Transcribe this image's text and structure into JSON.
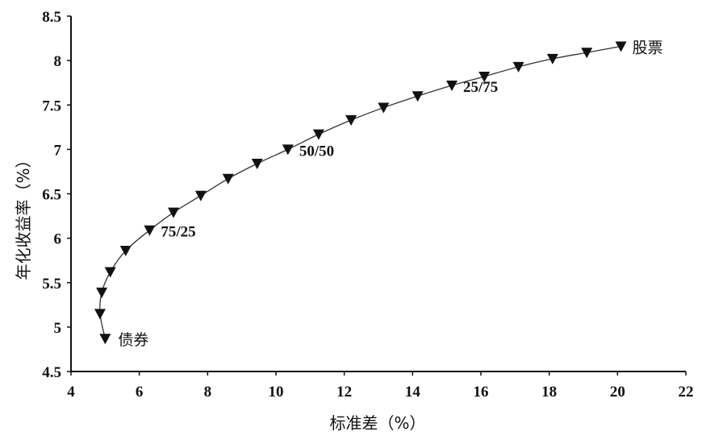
{
  "chart_data": {
    "type": "scatter",
    "xlabel": "标准差（%）",
    "ylabel": "年化收益率（%）",
    "xlim": [
      4,
      22
    ],
    "ylim": [
      4.5,
      8.5
    ],
    "x_ticks": [
      "4",
      "6",
      "8",
      "10",
      "12",
      "14",
      "16",
      "18",
      "20",
      "22"
    ],
    "y_ticks": [
      "4.5",
      "5",
      "5.5",
      "6",
      "6.5",
      "7",
      "7.5",
      "8",
      "8.5"
    ],
    "series": [
      {
        "x": [
          5.0,
          4.85,
          4.9,
          5.15,
          5.6,
          6.3,
          7.0,
          7.8,
          8.6,
          9.45,
          10.35,
          11.25,
          12.2,
          13.15,
          14.15,
          15.15,
          16.1,
          17.1,
          18.1,
          19.1,
          20.1
        ],
        "y": [
          4.87,
          5.15,
          5.39,
          5.62,
          5.86,
          6.09,
          6.29,
          6.48,
          6.67,
          6.84,
          7.0,
          7.17,
          7.33,
          7.47,
          7.6,
          7.72,
          7.82,
          7.93,
          8.02,
          8.09,
          8.16
        ]
      }
    ],
    "annotations": [
      {
        "text": "债券",
        "x": 5.0,
        "y": 4.87
      },
      {
        "text": "75/25",
        "x": 6.3,
        "y": 6.09
      },
      {
        "text": "50/50",
        "x": 10.35,
        "y": 7.0
      },
      {
        "text": "25/75",
        "x": 15.15,
        "y": 7.72
      },
      {
        "text": "股票",
        "x": 20.1,
        "y": 8.16
      }
    ]
  }
}
